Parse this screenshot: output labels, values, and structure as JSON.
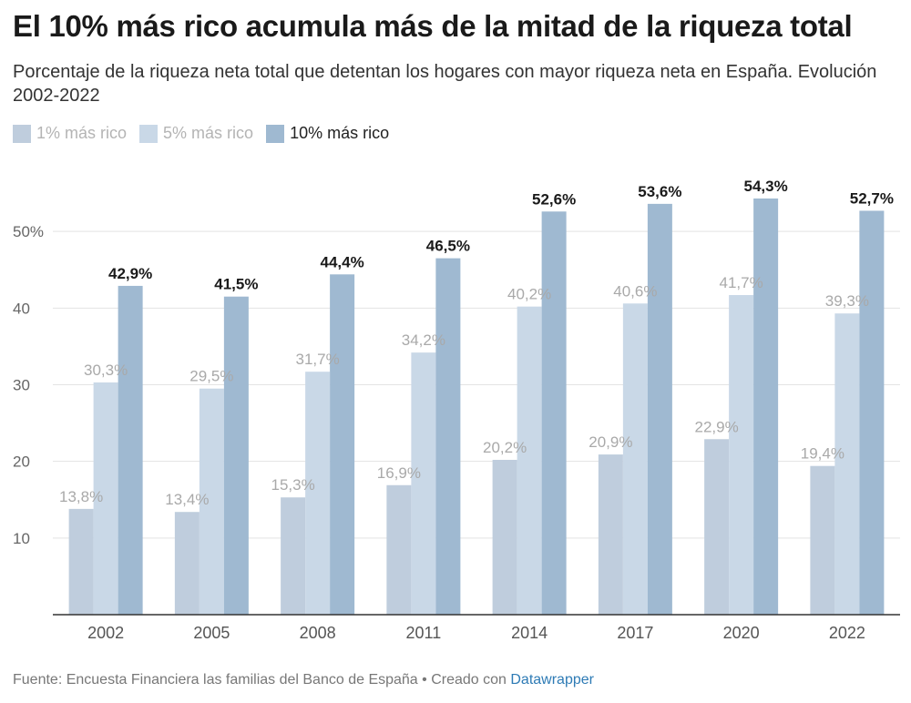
{
  "chart_data": {
    "type": "bar",
    "title": "El 10% más rico acumula más de la mitad de la riqueza total",
    "subtitle": "Porcentaje de la riqueza neta total que detentan los hogares con mayor riqueza neta en España. Evolución 2002-2022",
    "categories": [
      "2002",
      "2005",
      "2008",
      "2011",
      "2014",
      "2017",
      "2020",
      "2022"
    ],
    "series": [
      {
        "name": "1% más rico",
        "color": "#bfcddd",
        "values": [
          13.8,
          13.4,
          15.3,
          16.9,
          20.2,
          20.9,
          22.9,
          19.4
        ],
        "labels": [
          "13,8%",
          "13,4%",
          "15,3%",
          "16,9%",
          "20,2%",
          "20,9%",
          "22,9%",
          "19,4%"
        ]
      },
      {
        "name": "5% más rico",
        "color": "#c9d8e7",
        "values": [
          30.3,
          29.5,
          31.7,
          34.2,
          40.2,
          40.6,
          41.7,
          39.3
        ],
        "labels": [
          "30,3%",
          "29,5%",
          "31,7%",
          "34,2%",
          "40,2%",
          "40,6%",
          "41,7%",
          "39,3%"
        ]
      },
      {
        "name": "10% más rico",
        "color": "#9fb9d1",
        "values": [
          42.9,
          41.5,
          44.4,
          46.5,
          52.6,
          53.6,
          54.3,
          52.7
        ],
        "labels": [
          "42,9%",
          "41,5%",
          "44,4%",
          "46,5%",
          "52,6%",
          "53,6%",
          "54,3%",
          "52,7%"
        ]
      }
    ],
    "highlighted_series": "10% más rico",
    "y_ticks": [
      {
        "value": 10,
        "label": "10"
      },
      {
        "value": 20,
        "label": "20"
      },
      {
        "value": 30,
        "label": "30"
      },
      {
        "value": 40,
        "label": "40"
      },
      {
        "value": 50,
        "label": "50%"
      }
    ],
    "ylim": [
      0,
      60
    ],
    "grid": true,
    "legend_position": "top-left",
    "xlabel": "",
    "ylabel": ""
  },
  "footer": {
    "source_text": "Fuente: Encuesta Financiera las familias del Banco de España • Creado con ",
    "link_text": "Datawrapper"
  }
}
